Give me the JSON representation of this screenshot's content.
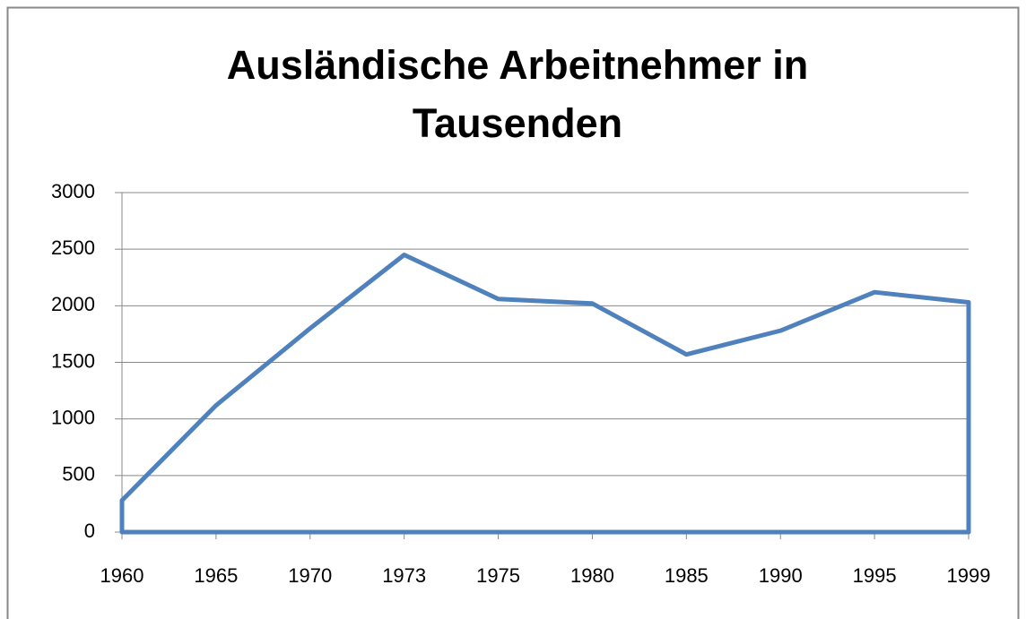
{
  "chart_data": {
    "type": "area",
    "title": "Ausländische Arbeitnehmer in Tausenden",
    "categories": [
      "1960",
      "1965",
      "1970",
      "1973",
      "1975",
      "1980",
      "1985",
      "1990",
      "1995",
      "1999"
    ],
    "values": [
      280,
      1120,
      1800,
      2450,
      2060,
      2020,
      1570,
      1780,
      2120,
      2030
    ],
    "color": "#4f81bd",
    "fill": "none",
    "ylim": [
      0,
      3000
    ],
    "yticks": [
      0,
      500,
      1000,
      1500,
      2000,
      2500,
      3000
    ],
    "grid": true
  }
}
